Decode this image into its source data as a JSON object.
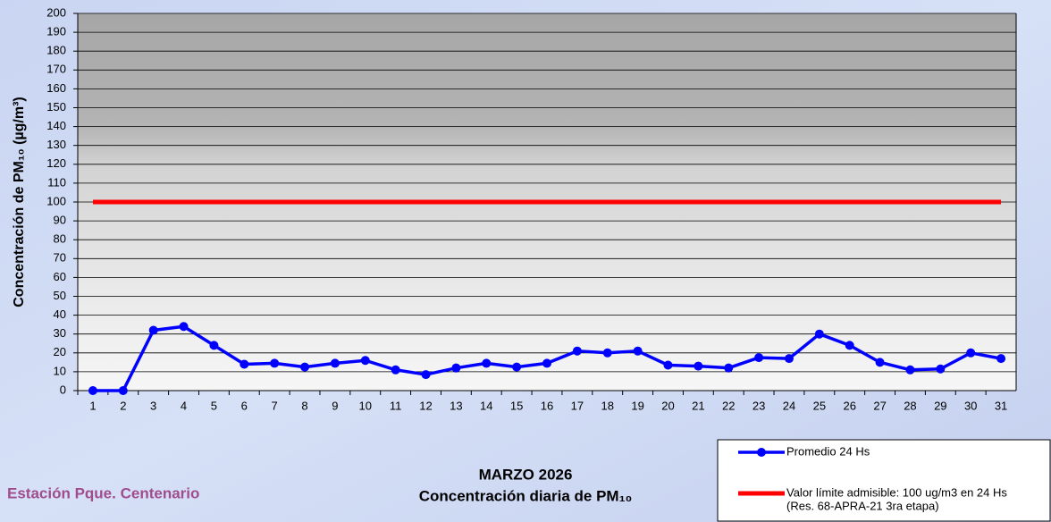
{
  "chart_data": {
    "type": "line",
    "title": "MARZO 2026",
    "subtitle": "Concentración diaria de PM₁₀",
    "station": "Estación Pque. Centenario",
    "y_label": "Concentración de PM₁₀ (µg/m³)",
    "categories": [
      "1",
      "2",
      "3",
      "4",
      "5",
      "6",
      "7",
      "8",
      "9",
      "10",
      "11",
      "12",
      "13",
      "14",
      "15",
      "16",
      "17",
      "18",
      "19",
      "20",
      "21",
      "22",
      "23",
      "24",
      "25",
      "26",
      "27",
      "28",
      "29",
      "30",
      "31"
    ],
    "series": [
      {
        "name": "Promedio 24 Hs",
        "color": "#0000ff",
        "markers": true,
        "values": [
          0,
          0,
          32,
          34,
          24,
          14,
          14.5,
          12.5,
          14.5,
          16,
          11,
          8.5,
          12,
          14.5,
          12.5,
          14.5,
          21,
          20,
          21,
          13.5,
          13,
          12,
          17.5,
          17,
          30,
          24,
          15,
          11,
          11.5,
          20,
          17
        ]
      },
      {
        "name": "Valor límite admisible: 100 ug/m3 en 24 Hs",
        "legend_note": "(Res. 68-APRA-21 3ra etapa)",
        "color": "#ff0000",
        "markers": false,
        "values": [
          100,
          100,
          100,
          100,
          100,
          100,
          100,
          100,
          100,
          100,
          100,
          100,
          100,
          100,
          100,
          100,
          100,
          100,
          100,
          100,
          100,
          100,
          100,
          100,
          100,
          100,
          100,
          100,
          100,
          100,
          100
        ]
      }
    ],
    "ylim": [
      0,
      200
    ],
    "yticks": [
      0,
      10,
      20,
      30,
      40,
      50,
      60,
      70,
      80,
      90,
      100,
      110,
      120,
      130,
      140,
      150,
      160,
      170,
      180,
      190,
      200
    ],
    "grid": true
  }
}
